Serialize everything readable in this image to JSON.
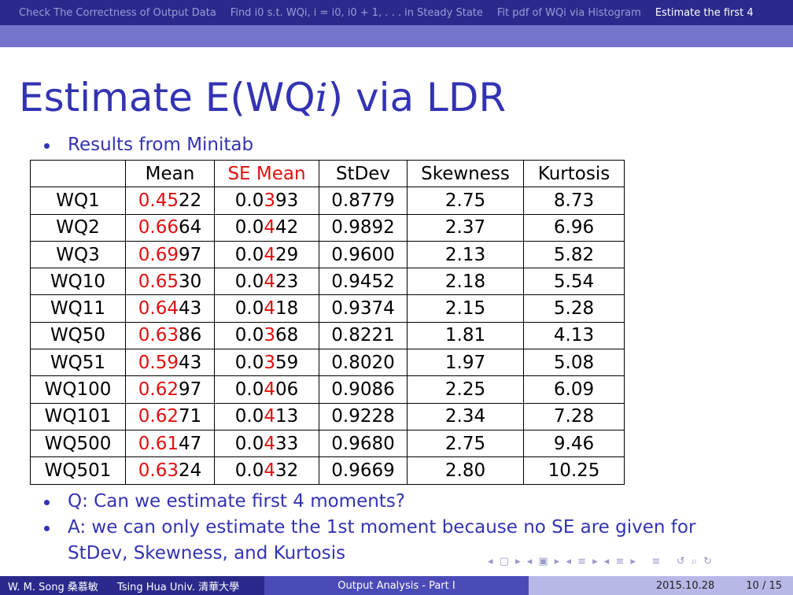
{
  "nav": [
    "Check The Correctness of Output Data",
    "Find i0 s.t. WQi, i = i0, i0 + 1, . . . in Steady State",
    "Fit pdf of WQi via Histogram",
    "Estimate the first 4"
  ],
  "title": [
    "Estimate E(WQ",
    "i",
    ") via LDR"
  ],
  "bullets_top": [
    "Results from Minitab"
  ],
  "table": {
    "header": [
      "",
      "Mean",
      "SE Mean",
      "StDev",
      "Skewness",
      "Kurtosis"
    ],
    "rows": [
      [
        "WQ1",
        [
          "0.45",
          "22"
        ],
        [
          "0.0",
          "3",
          "93"
        ],
        "0.8779",
        "2.75",
        "8.73"
      ],
      [
        "WQ2",
        [
          "0.66",
          "64"
        ],
        [
          "0.0",
          "4",
          "42"
        ],
        "0.9892",
        "2.37",
        "6.96"
      ],
      [
        "WQ3",
        [
          "0.69",
          "97"
        ],
        [
          "0.0",
          "4",
          "29"
        ],
        "0.9600",
        "2.13",
        "5.82"
      ],
      [
        "WQ10",
        [
          "0.65",
          "30"
        ],
        [
          "0.0",
          "4",
          "23"
        ],
        "0.9452",
        "2.18",
        "5.54"
      ],
      [
        "WQ11",
        [
          "0.64",
          "43"
        ],
        [
          "0.0",
          "4",
          "18"
        ],
        "0.9374",
        "2.15",
        "5.28"
      ],
      [
        "WQ50",
        [
          "0.63",
          "86"
        ],
        [
          "0.0",
          "3",
          "68"
        ],
        "0.8221",
        "1.81",
        "4.13"
      ],
      [
        "WQ51",
        [
          "0.59",
          "43"
        ],
        [
          "0.0",
          "3",
          "59"
        ],
        "0.8020",
        "1.97",
        "5.08"
      ],
      [
        "WQ100",
        [
          "0.62",
          "97"
        ],
        [
          "0.0",
          "4",
          "06"
        ],
        "0.9086",
        "2.25",
        "6.09"
      ],
      [
        "WQ101",
        [
          "0.62",
          "71"
        ],
        [
          "0.0",
          "4",
          "13"
        ],
        "0.9228",
        "2.34",
        "7.28"
      ],
      [
        "WQ500",
        [
          "0.61",
          "47"
        ],
        [
          "0.0",
          "4",
          "33"
        ],
        "0.9680",
        "2.75",
        "9.46"
      ],
      [
        "WQ501",
        [
          "0.63",
          "24"
        ],
        [
          "0.0",
          "4",
          "32"
        ],
        "0.9669",
        "2.80",
        "10.25"
      ]
    ]
  },
  "bullets_bottom": [
    "Q: Can we estimate first 4 moments?",
    "A: we can only estimate the 1st moment because no SE are given for StDev, Skewness, and Kurtosis"
  ],
  "footer": {
    "author": "W. M. Song 桑慕敏",
    "institute": "Tsing Hua Univ. 清華大學",
    "talk": "Output Analysis - Part I",
    "date": "2015.10.28",
    "page": "10 / 15"
  }
}
